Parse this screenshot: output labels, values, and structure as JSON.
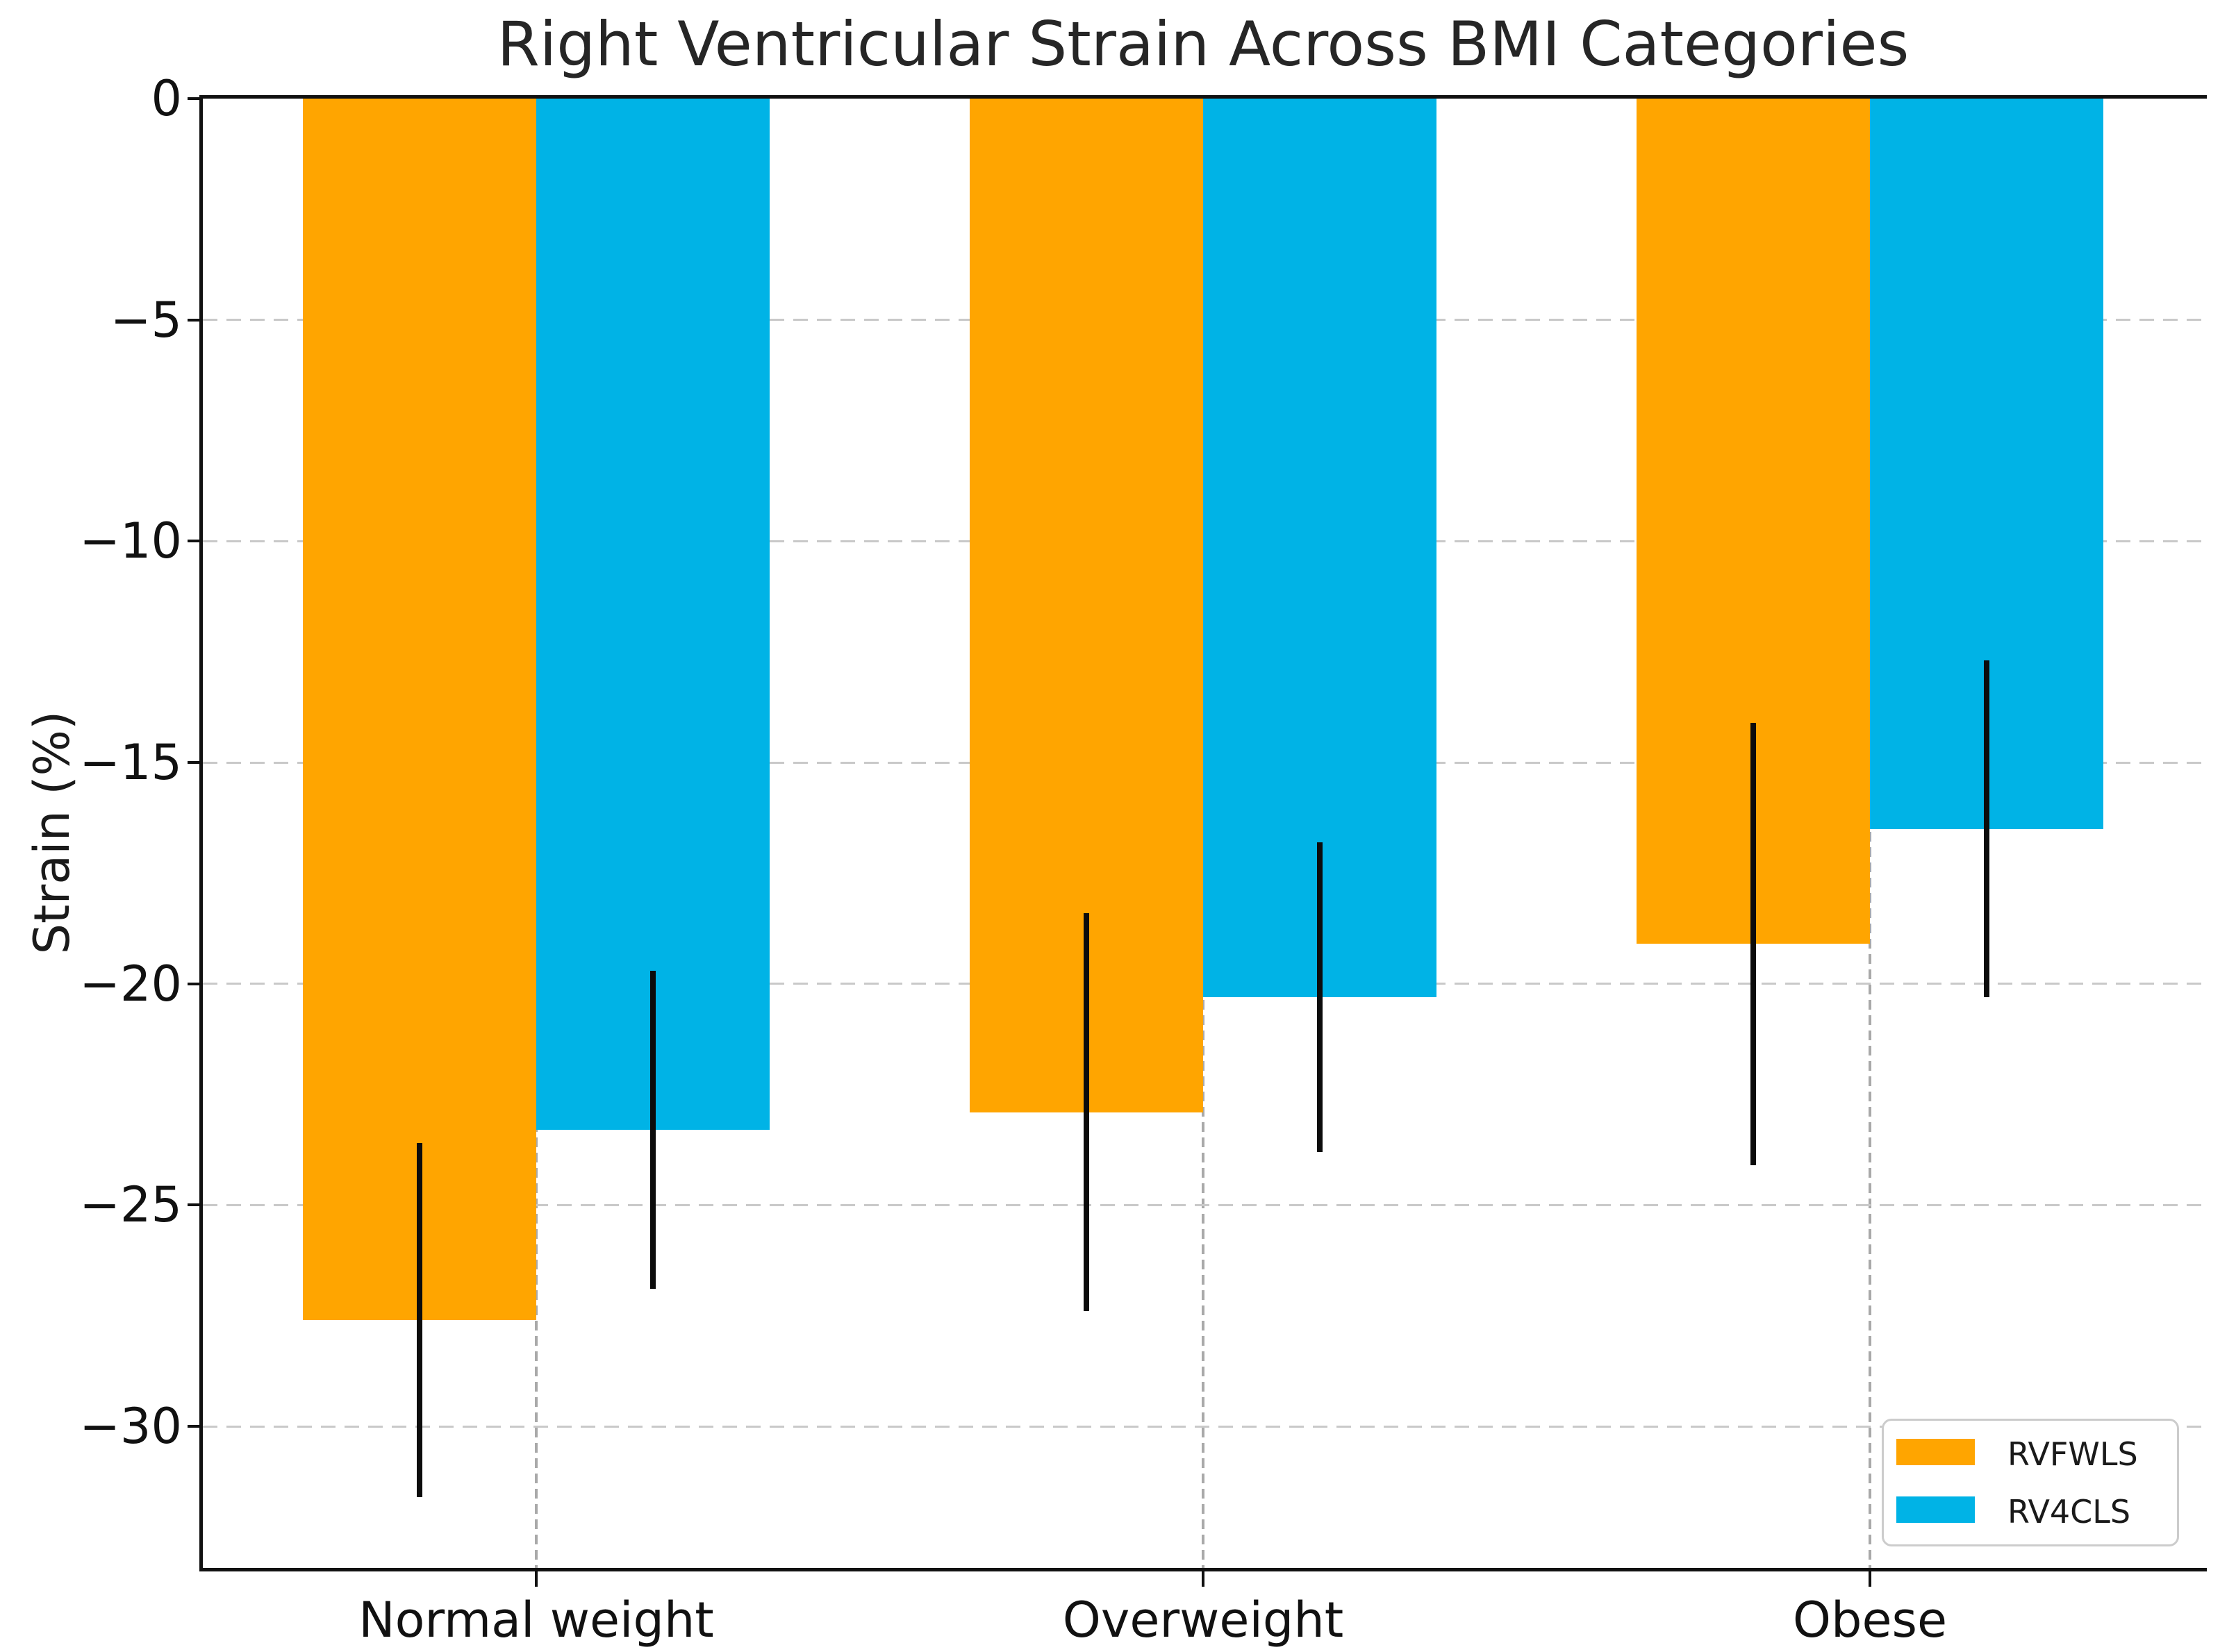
{
  "figure": {
    "background": "#ffffff",
    "text_color": "#1a1a1a"
  },
  "chart_data": {
    "type": "bar",
    "title": "Right Ventricular Strain Across BMI Categories",
    "xlabel": "",
    "ylabel": "Strain (%)",
    "categories": [
      "Normal weight",
      "Overweight",
      "Obese"
    ],
    "series": [
      {
        "name": "RVFWLS",
        "color": "#FFA500",
        "values": [
          -27.6,
          -22.9,
          -19.1
        ],
        "errors": [
          4.0,
          4.5,
          5.0
        ]
      },
      {
        "name": "RV4CLS",
        "color": "#00B3E6",
        "values": [
          -23.3,
          -20.3,
          -16.5
        ],
        "errors": [
          3.6,
          3.5,
          3.8
        ]
      }
    ],
    "bar_width": 0.35,
    "ylim": [
      -33.2,
      0
    ],
    "xlim": [
      -0.5,
      2.5
    ],
    "yticks": [
      0,
      -5,
      -10,
      -15,
      -20,
      -25,
      -30
    ],
    "ytick_labels": [
      "0",
      "−5",
      "−10",
      "−15",
      "−20",
      "−25",
      "−30"
    ],
    "grid": true,
    "grid_style": "dashed",
    "legend_position": "lower right",
    "error_bar_color": "#0c0c0c",
    "spines": [
      "left",
      "top",
      "bottom"
    ]
  }
}
